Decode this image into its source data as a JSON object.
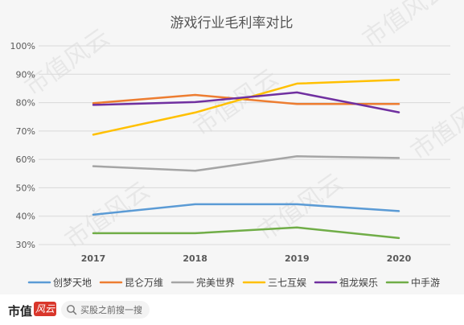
{
  "chart_data": {
    "type": "line",
    "title": "游戏行业毛利率对比",
    "categories": [
      "2017",
      "2018",
      "2019",
      "2020"
    ],
    "ylim": [
      30,
      100
    ],
    "yticks": [
      "30%",
      "40%",
      "50%",
      "60%",
      "70%",
      "80%",
      "90%",
      "100%"
    ],
    "grid": true,
    "legend_position": "bottom",
    "series": [
      {
        "name": "创梦天地",
        "color": "#5b9bd5",
        "values": [
          40.5,
          44.2,
          44.2,
          41.8
        ]
      },
      {
        "name": "昆仑万维",
        "color": "#ed7d31",
        "values": [
          79.8,
          82.7,
          79.5,
          79.5
        ]
      },
      {
        "name": "完美世界",
        "color": "#a5a5a5",
        "values": [
          57.6,
          56.0,
          61.1,
          60.5
        ]
      },
      {
        "name": "三七互娱",
        "color": "#ffc000",
        "values": [
          68.7,
          76.5,
          86.7,
          88.0
        ]
      },
      {
        "name": "祖龙娱乐",
        "color": "#7030a0",
        "values": [
          79.2,
          80.2,
          83.6,
          76.6
        ]
      },
      {
        "name": "中手游",
        "color": "#70ad47",
        "values": [
          34.0,
          34.0,
          36.0,
          32.3
        ]
      }
    ]
  },
  "watermark": "市值风云",
  "footer": {
    "logo_text": "市值",
    "logo_badge": "风云",
    "search_icon": "search-icon",
    "search_placeholder": "买股之前搜一搜"
  }
}
